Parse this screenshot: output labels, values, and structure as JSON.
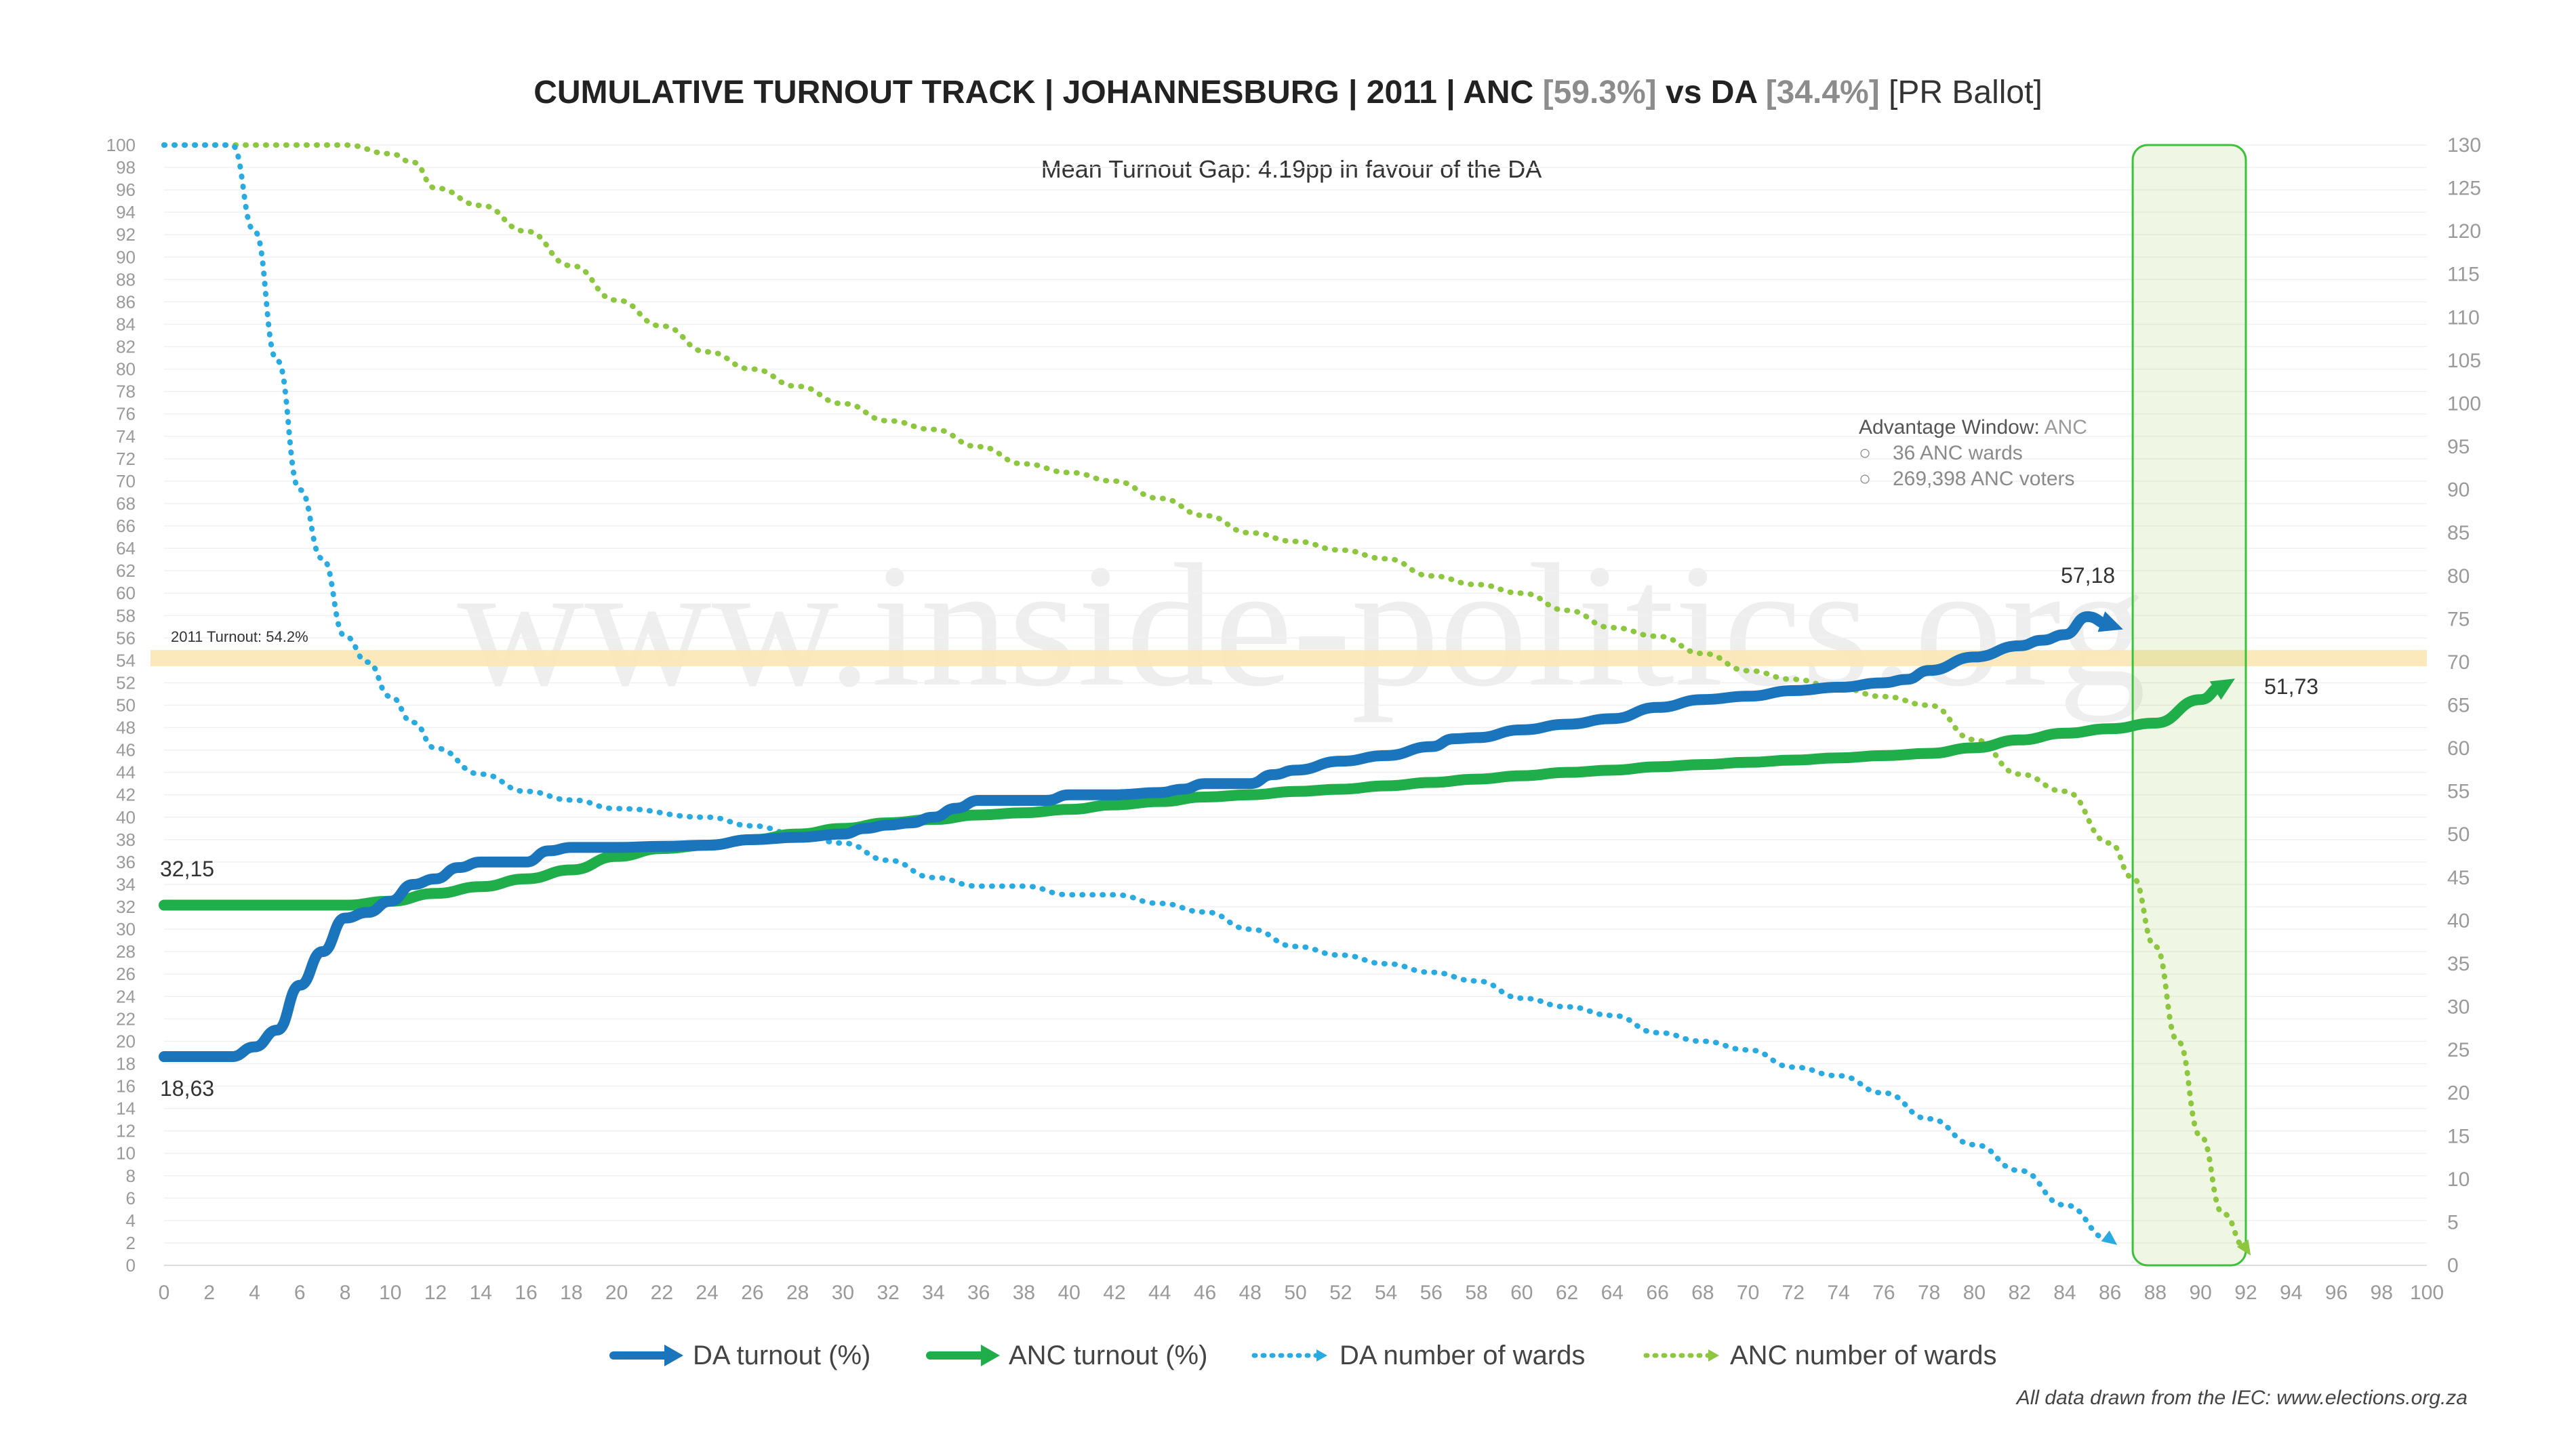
{
  "chart_data": {
    "type": "line",
    "title_parts": {
      "main": "CUMULATIVE TURNOUT TRACK | JOHANNESBURG | 2011 | ANC ",
      "anc_pct": "[59.3%]",
      "vs": " vs DA ",
      "da_pct": "[34.4%]",
      "ballot": " [PR Ballot]"
    },
    "subtitle": "Mean Turnout Gap: 4.19pp in favour of the DA",
    "x_range": [
      0,
      100
    ],
    "x_ticks": [
      "0",
      "2",
      "4",
      "6",
      "8",
      "10",
      "12",
      "14",
      "16",
      "18",
      "20",
      "22",
      "24",
      "26",
      "28",
      "30",
      "32",
      "34",
      "36",
      "38",
      "40",
      "42",
      "44",
      "46",
      "48",
      "50",
      "52",
      "54",
      "56",
      "58",
      "60",
      "62",
      "64",
      "66",
      "68",
      "70",
      "72",
      "74",
      "76",
      "78",
      "80",
      "82",
      "84",
      "86",
      "88",
      "90",
      "92",
      "94",
      "96",
      "98",
      "100"
    ],
    "y_left_range": [
      0,
      100
    ],
    "y_left_ticks": [
      "0",
      "2",
      "4",
      "6",
      "8",
      "10",
      "12",
      "14",
      "16",
      "18",
      "20",
      "22",
      "24",
      "26",
      "28",
      "30",
      "32",
      "34",
      "36",
      "38",
      "40",
      "42",
      "44",
      "46",
      "48",
      "50",
      "52",
      "54",
      "56",
      "58",
      "60",
      "62",
      "64",
      "66",
      "68",
      "70",
      "72",
      "74",
      "76",
      "78",
      "80",
      "82",
      "84",
      "86",
      "88",
      "90",
      "92",
      "94",
      "96",
      "98",
      "100"
    ],
    "y_right_range": [
      0,
      130
    ],
    "y_right_ticks": [
      "0",
      "5",
      "10",
      "15",
      "20",
      "25",
      "30",
      "35",
      "40",
      "45",
      "50",
      "55",
      "60",
      "65",
      "70",
      "75",
      "80",
      "85",
      "90",
      "95",
      "100",
      "105",
      "110",
      "115",
      "120",
      "125",
      "130"
    ],
    "reference_band": {
      "value": 54.2,
      "label": "2011 Turnout: 54.2%"
    },
    "highlight_window": {
      "x_start": 87,
      "x_end": 92
    },
    "advantage_window": {
      "heading": "Advantage Window: ",
      "party": "ANC",
      "items": [
        "36 ANC wards",
        "269,398 ANC voters"
      ]
    },
    "series": [
      {
        "name": "DA turnout (%)",
        "axis": "left",
        "color": "#1a75bc",
        "style": "solid",
        "x": [
          0,
          3,
          4,
          5,
          6,
          7,
          8,
          9,
          10,
          11,
          12,
          13,
          14,
          15,
          16,
          17,
          18,
          20,
          22,
          24,
          26,
          28,
          30,
          31,
          32,
          33,
          34,
          35,
          36,
          38,
          39,
          40,
          42,
          44,
          45,
          46,
          48,
          49,
          50,
          52,
          54,
          56,
          57,
          58,
          60,
          62,
          64,
          66,
          68,
          70,
          72,
          74,
          76,
          77,
          78,
          80,
          82,
          83,
          84,
          85,
          86
        ],
        "y": [
          18.63,
          18.63,
          19.5,
          21,
          25,
          28,
          31,
          31.5,
          32.5,
          34,
          34.5,
          35.5,
          36,
          36,
          36,
          37,
          37.3,
          37.3,
          37.4,
          37.5,
          38,
          38.2,
          38.5,
          39,
          39.3,
          39.5,
          40,
          40.8,
          41.5,
          41.5,
          41.5,
          42,
          42,
          42.2,
          42.5,
          43,
          43,
          43.8,
          44.2,
          45,
          45.5,
          46.3,
          47,
          47.1,
          47.8,
          48.3,
          48.8,
          49.8,
          50.5,
          50.8,
          51.3,
          51.6,
          52,
          52.3,
          53.1,
          54.3,
          55.3,
          55.8,
          56.3,
          57.9,
          57.18
        ]
      },
      {
        "name": "ANC turnout (%)",
        "axis": "left",
        "color": "#1fae4a",
        "style": "solid",
        "x": [
          0,
          5,
          8,
          10,
          12,
          14,
          16,
          18,
          20,
          22,
          24,
          26,
          28,
          30,
          32,
          34,
          36,
          38,
          40,
          42,
          44,
          46,
          48,
          50,
          52,
          54,
          56,
          58,
          60,
          62,
          64,
          66,
          68,
          70,
          72,
          74,
          76,
          78,
          80,
          82,
          84,
          86,
          88,
          90,
          91
        ],
        "y": [
          32.15,
          32.15,
          32.15,
          32.5,
          33.2,
          33.8,
          34.5,
          35.3,
          36.5,
          37.2,
          37.5,
          38,
          38.5,
          39,
          39.5,
          39.8,
          40.2,
          40.4,
          40.7,
          41.1,
          41.4,
          41.8,
          42,
          42.3,
          42.5,
          42.8,
          43.1,
          43.4,
          43.7,
          44,
          44.2,
          44.5,
          44.7,
          44.9,
          45.1,
          45.3,
          45.5,
          45.7,
          46.2,
          46.9,
          47.5,
          47.9,
          48.4,
          50.5,
          51.73
        ]
      },
      {
        "name": "DA number of wards",
        "axis": "right",
        "color": "#29abe2",
        "style": "dotted",
        "x": [
          0,
          3,
          4,
          5,
          6,
          7,
          8,
          9,
          10,
          11,
          12,
          14,
          16,
          18,
          20,
          24,
          26,
          28,
          30,
          32,
          34,
          36,
          38,
          40,
          42,
          44,
          46,
          48,
          50,
          52,
          54,
          56,
          58,
          60,
          62,
          64,
          66,
          68,
          70,
          72,
          74,
          76,
          78,
          80,
          82,
          84,
          86
        ],
        "y": [
          130,
          130,
          120,
          105,
          90,
          82,
          73,
          70,
          66,
          63,
          60,
          57,
          55,
          54,
          53,
          52,
          51,
          50,
          49,
          47,
          45,
          44,
          44,
          43,
          43,
          42,
          41,
          39,
          37,
          36,
          35,
          34,
          33,
          31,
          30,
          29,
          27,
          26,
          25,
          23,
          22,
          20,
          17,
          14,
          11,
          7,
          3
        ]
      },
      {
        "name": "ANC number of wards",
        "axis": "right",
        "color": "#8dc63f",
        "style": "dotted",
        "x": [
          0,
          8,
          10,
          11,
          12,
          14,
          16,
          18,
          20,
          22,
          24,
          26,
          28,
          30,
          32,
          34,
          36,
          38,
          40,
          42,
          44,
          46,
          48,
          50,
          52,
          54,
          56,
          58,
          60,
          62,
          64,
          66,
          68,
          70,
          72,
          74,
          76,
          78,
          80,
          82,
          84,
          86,
          87,
          88,
          89,
          90,
          91,
          92
        ],
        "y": [
          130,
          130,
          129,
          128,
          125,
          123,
          120,
          116,
          112,
          109,
          106,
          104,
          102,
          100,
          98,
          97,
          95,
          93,
          92,
          91,
          89,
          87,
          85,
          84,
          83,
          82,
          80,
          79,
          78,
          76,
          74,
          73,
          71,
          69,
          68,
          67,
          66,
          65,
          61,
          57,
          55,
          49,
          45,
          37,
          26,
          15,
          6,
          2
        ]
      }
    ],
    "end_labels": {
      "da_start": "18,63",
      "anc_start": "32,15",
      "da_end": "57,18",
      "anc_end": "51,73"
    },
    "legend": [
      "DA turnout (%)",
      "ANC turnout (%)",
      "DA number of wards",
      "ANC number of wards"
    ],
    "source": "All data drawn from the IEC: www.elections.org.za",
    "watermark": "www.inside-politics.org"
  }
}
